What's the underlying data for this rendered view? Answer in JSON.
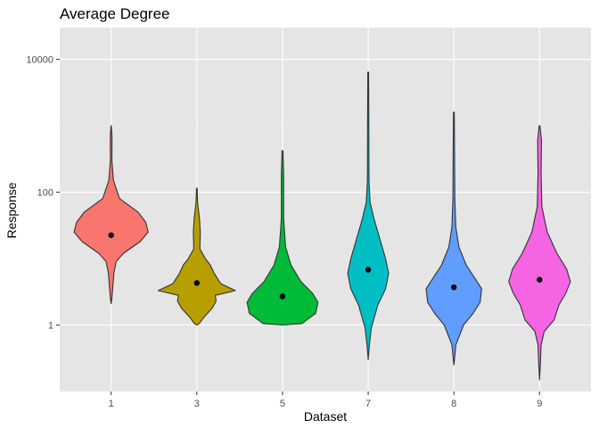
{
  "chart_data": {
    "type": "violin",
    "title": "Average Degree",
    "xlabel": "Dataset",
    "ylabel": "Response",
    "y_scale": "log10",
    "ylim": [
      0.1,
      30000
    ],
    "y_ticks": [
      1,
      100,
      10000
    ],
    "y_tick_labels": [
      "1",
      "100",
      "10000"
    ],
    "grid": true,
    "legend": "none",
    "panel_background": "#e5e5e5",
    "categories": [
      "1",
      "3",
      "5",
      "7",
      "8",
      "9"
    ],
    "series": [
      {
        "category": "1",
        "color": "#f8766d",
        "mean": 22.5,
        "profile": [
          [
            2.1,
            0.0
          ],
          [
            2.5,
            0.018
          ],
          [
            3.5,
            0.04
          ],
          [
            6,
            0.07
          ],
          [
            9,
            0.13
          ],
          [
            12,
            0.32
          ],
          [
            18,
            0.75
          ],
          [
            25,
            0.96
          ],
          [
            35,
            0.9
          ],
          [
            50,
            0.7
          ],
          [
            80,
            0.22
          ],
          [
            150,
            0.06
          ],
          [
            300,
            0.02
          ],
          [
            700,
            0.022
          ],
          [
            1000,
            0.003
          ]
        ]
      },
      {
        "category": "3",
        "color": "#b79f00",
        "mean": 4.3,
        "profile": [
          [
            1.0,
            0.0
          ],
          [
            1.05,
            0.06
          ],
          [
            1.3,
            0.18
          ],
          [
            1.8,
            0.4
          ],
          [
            2.3,
            0.5
          ],
          [
            2.8,
            0.48
          ],
          [
            3.3,
            1.0
          ],
          [
            4.2,
            0.62
          ],
          [
            6,
            0.45
          ],
          [
            8,
            0.35
          ],
          [
            10,
            0.22
          ],
          [
            14,
            0.08
          ],
          [
            25,
            0.09
          ],
          [
            40,
            0.07
          ],
          [
            70,
            0.02
          ],
          [
            115,
            0.008
          ]
        ]
      },
      {
        "category": "5",
        "color": "#00ba38",
        "mean": 2.7,
        "profile": [
          [
            1.0,
            0.0
          ],
          [
            1.05,
            0.5
          ],
          [
            1.5,
            0.86
          ],
          [
            2.2,
            0.92
          ],
          [
            3.0,
            0.78
          ],
          [
            4.5,
            0.48
          ],
          [
            8,
            0.22
          ],
          [
            15,
            0.08
          ],
          [
            40,
            0.03
          ],
          [
            100,
            0.03
          ],
          [
            180,
            0.03
          ],
          [
            420,
            0.012
          ]
        ]
      },
      {
        "category": "7",
        "color": "#00bfc4",
        "mean": 6.8,
        "profile": [
          [
            0.3,
            0.0
          ],
          [
            0.5,
            0.03
          ],
          [
            0.9,
            0.08
          ],
          [
            2,
            0.25
          ],
          [
            3.5,
            0.45
          ],
          [
            6,
            0.53
          ],
          [
            10,
            0.45
          ],
          [
            20,
            0.3
          ],
          [
            40,
            0.15
          ],
          [
            70,
            0.05
          ],
          [
            150,
            0.02
          ],
          [
            500,
            0.018
          ],
          [
            1500,
            0.015
          ],
          [
            6400,
            0.01
          ]
        ]
      },
      {
        "category": "8",
        "color": "#619cff",
        "mean": 3.7,
        "profile": [
          [
            0.25,
            0.0
          ],
          [
            0.32,
            0.02
          ],
          [
            0.5,
            0.05
          ],
          [
            1.0,
            0.25
          ],
          [
            1.5,
            0.5
          ],
          [
            2.2,
            0.68
          ],
          [
            3.5,
            0.72
          ],
          [
            5,
            0.55
          ],
          [
            8,
            0.32
          ],
          [
            15,
            0.13
          ],
          [
            30,
            0.05
          ],
          [
            80,
            0.025
          ],
          [
            400,
            0.018
          ],
          [
            1600,
            0.01
          ]
        ]
      },
      {
        "category": "9",
        "color": "#f564e3",
        "mean": 4.8,
        "profile": [
          [
            0.15,
            0.0
          ],
          [
            0.25,
            0.02
          ],
          [
            0.5,
            0.04
          ],
          [
            0.8,
            0.12
          ],
          [
            1.2,
            0.38
          ],
          [
            2.0,
            0.5
          ],
          [
            3.0,
            0.68
          ],
          [
            4.5,
            0.8
          ],
          [
            7,
            0.7
          ],
          [
            12,
            0.45
          ],
          [
            25,
            0.2
          ],
          [
            60,
            0.06
          ],
          [
            200,
            0.04
          ],
          [
            600,
            0.05
          ],
          [
            1000,
            0.01
          ]
        ]
      }
    ]
  }
}
